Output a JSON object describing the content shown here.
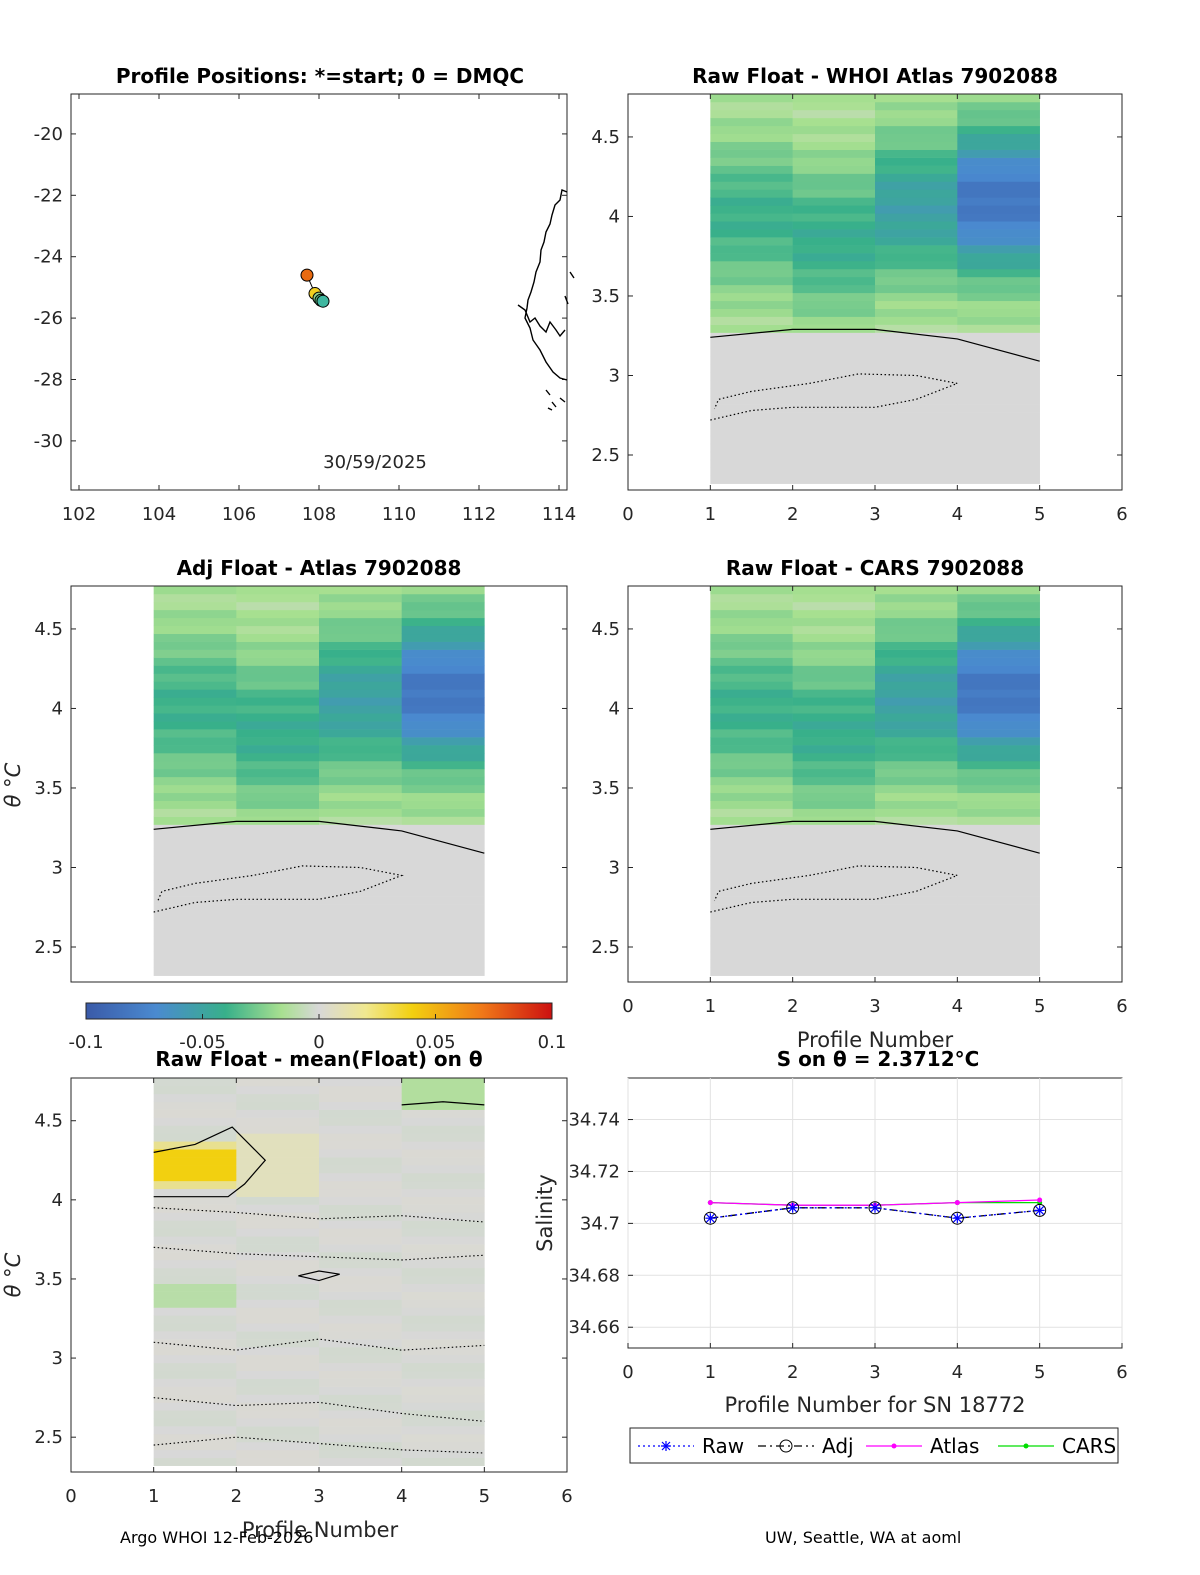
{
  "footer": {
    "left": "Argo WHOI 12-Feb-2026",
    "right": "UW, Seattle, WA at aoml"
  },
  "colorbar": {
    "ticks": [
      "-0.1",
      "-0.05",
      "0",
      "0.05",
      "0.1"
    ],
    "range": [
      -0.1,
      0.1
    ]
  },
  "chart_data": [
    {
      "id": "positions",
      "type": "scatter",
      "title": "Profile Positions: *=start; 0 = DMQC",
      "xlim": [
        101.8,
        114.2
      ],
      "ylim": [
        -31.6,
        -18.7
      ],
      "xticks": [
        102,
        104,
        106,
        108,
        110,
        112,
        114
      ],
      "yticks": [
        -30,
        -28,
        -26,
        -24,
        -22,
        -20
      ],
      "annotation": "30/59/2025",
      "points": [
        {
          "lon": 107.7,
          "lat": -24.6,
          "color": "#e86a10"
        },
        {
          "lon": 107.9,
          "lat": -25.2,
          "color": "#f2d020"
        },
        {
          "lon": 108.0,
          "lat": -25.35,
          "color": "#8fd08a"
        },
        {
          "lon": 108.05,
          "lat": -25.42,
          "color": "#56b67a"
        },
        {
          "lon": 108.1,
          "lat": -25.45,
          "color": "#3fb7a0"
        }
      ]
    },
    {
      "id": "raw-atlas",
      "type": "heatmap",
      "title": "Raw Float - WHOI Atlas  7902088",
      "xlim": [
        0,
        6
      ],
      "ylim": [
        2.28,
        4.77
      ],
      "xticks": [
        0,
        1,
        2,
        3,
        4,
        5,
        6
      ],
      "yticks": [
        2.5,
        3,
        3.5,
        4,
        4.5
      ],
      "xlabel": "",
      "ylabel": "",
      "pattern": "A"
    },
    {
      "id": "adj-atlas",
      "type": "heatmap",
      "title": "Adj Float - Atlas  7902088",
      "xlim": [
        0,
        6
      ],
      "ylim": [
        2.28,
        4.77
      ],
      "xticks": [],
      "yticks": [
        2.5,
        3,
        3.5,
        4,
        4.5
      ],
      "xlabel": "",
      "ylabel": "θ °C",
      "pattern": "A"
    },
    {
      "id": "raw-cars",
      "type": "heatmap",
      "title": "Raw Float - CARS  7902088",
      "xlim": [
        0,
        6
      ],
      "ylim": [
        2.28,
        4.77
      ],
      "xticks": [
        0,
        1,
        2,
        3,
        4,
        5,
        6
      ],
      "yticks": [
        2.5,
        3,
        3.5,
        4,
        4.5
      ],
      "xlabel": "Profile Number",
      "ylabel": "",
      "pattern": "C"
    },
    {
      "id": "raw-mean",
      "type": "heatmap",
      "title": "Raw Float - mean(Float) on θ",
      "xlim": [
        0,
        6
      ],
      "ylim": [
        2.28,
        4.77
      ],
      "xticks": [
        0,
        1,
        2,
        3,
        4,
        5,
        6
      ],
      "yticks": [
        2.5,
        3,
        3.5,
        4,
        4.5
      ],
      "xlabel": "Profile Number",
      "ylabel": "θ °C",
      "pattern": "M"
    },
    {
      "id": "salinity",
      "type": "line",
      "title": "S on θ = 2.3712°C",
      "xlim": [
        0,
        6
      ],
      "ylim": [
        34.652,
        34.756
      ],
      "xticks": [
        0,
        1,
        2,
        3,
        4,
        5,
        6
      ],
      "yticks": [
        34.66,
        34.68,
        34.7,
        34.72,
        34.74
      ],
      "xlabel": "Profile Number for SN 18772",
      "ylabel": "Salinity",
      "x": [
        1,
        2,
        3,
        4,
        5
      ],
      "series": [
        {
          "name": "Raw",
          "values": [
            34.702,
            34.706,
            34.706,
            34.702,
            34.705
          ],
          "color": "#0000ff",
          "dash": "2,3",
          "marker": "star"
        },
        {
          "name": "Adj",
          "values": [
            34.702,
            34.706,
            34.706,
            34.702,
            34.705
          ],
          "color": "#000000",
          "dash": "8,4,2,4",
          "marker": "circle"
        },
        {
          "name": "Atlas",
          "values": [
            34.708,
            34.707,
            34.707,
            34.708,
            34.709
          ],
          "color": "#ff00ff",
          "dash": "",
          "marker": "dot"
        },
        {
          "name": "CARS",
          "values": [
            34.708,
            34.707,
            34.707,
            34.708,
            34.708
          ],
          "color": "#00dd00",
          "dash": "",
          "marker": "dot"
        }
      ]
    }
  ]
}
